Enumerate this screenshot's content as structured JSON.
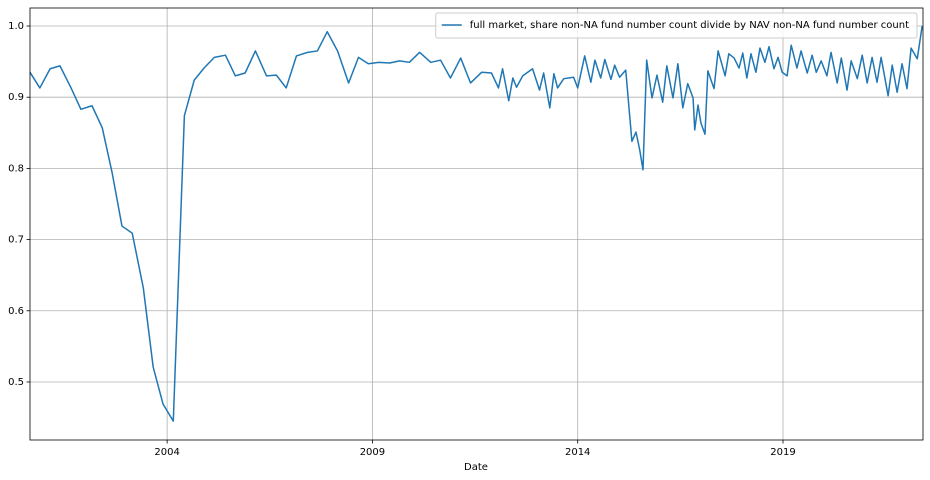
{
  "chart_data": {
    "type": "line",
    "xlabel": "Date",
    "xlim": [
      2000.66,
      2022.41
    ],
    "xticks": [
      2004,
      2009,
      2014,
      2019
    ],
    "ylim": [
      0.4185,
      1.0253
    ],
    "yticks": [
      0.5,
      0.6,
      0.7,
      0.8,
      0.9,
      {
        "value": 1.0,
        "label": "1.0"
      }
    ],
    "grid": true,
    "legend": "upper right",
    "series": [
      {
        "name": "full market, share non-NA fund number count divide by NAV non-NA fund number count",
        "color": "#1f77b4",
        "x": [
          2000.66,
          2000.9,
          2001.15,
          2001.39,
          2001.66,
          2001.9,
          2002.17,
          2002.42,
          2002.66,
          2002.9,
          2003.15,
          2003.42,
          2003.66,
          2003.9,
          2004.15,
          2004.42,
          2004.66,
          2004.9,
          2005.15,
          2005.42,
          2005.66,
          2005.9,
          2006.15,
          2006.42,
          2006.66,
          2006.9,
          2007.15,
          2007.42,
          2007.66,
          2007.9,
          2008.15,
          2008.42,
          2008.66,
          2008.9,
          2009.15,
          2009.42,
          2009.66,
          2009.9,
          2010.15,
          2010.42,
          2010.66,
          2010.9,
          2011.15,
          2011.39,
          2011.66,
          2011.9,
          2012.07,
          2012.17,
          2012.32,
          2012.42,
          2012.51,
          2012.66,
          2012.9,
          2013.07,
          2013.17,
          2013.32,
          2013.42,
          2013.51,
          2013.66,
          2013.9,
          2014.0,
          2014.17,
          2014.32,
          2014.42,
          2014.56,
          2014.66,
          2014.81,
          2014.9,
          2015.02,
          2015.17,
          2015.32,
          2015.42,
          2015.51,
          2015.59,
          2015.68,
          2015.81,
          2015.93,
          2016.07,
          2016.17,
          2016.32,
          2016.44,
          2016.56,
          2016.68,
          2016.81,
          2016.85,
          2016.93,
          2017.0,
          2017.1,
          2017.17,
          2017.32,
          2017.42,
          2017.59,
          2017.68,
          2017.81,
          2017.93,
          2018.02,
          2018.12,
          2018.22,
          2018.34,
          2018.44,
          2018.56,
          2018.66,
          2018.78,
          2018.88,
          2018.98,
          2019.1,
          2019.2,
          2019.34,
          2019.44,
          2019.59,
          2019.71,
          2019.81,
          2019.93,
          2020.07,
          2020.17,
          2020.32,
          2020.42,
          2020.56,
          2020.66,
          2020.81,
          2020.93,
          2021.05,
          2021.17,
          2021.29,
          2021.39,
          2021.56,
          2021.66,
          2021.78,
          2021.9,
          2022.02,
          2022.12,
          2022.27,
          2022.39
        ],
        "values": [
          0.935,
          0.913,
          0.94,
          0.944,
          0.913,
          0.883,
          0.888,
          0.857,
          0.794,
          0.719,
          0.709,
          0.632,
          0.521,
          0.469,
          0.445,
          0.874,
          0.924,
          0.941,
          0.956,
          0.959,
          0.93,
          0.934,
          0.965,
          0.93,
          0.931,
          0.913,
          0.958,
          0.963,
          0.965,
          0.992,
          0.965,
          0.92,
          0.956,
          0.947,
          0.949,
          0.948,
          0.951,
          0.949,
          0.963,
          0.949,
          0.952,
          0.927,
          0.955,
          0.92,
          0.935,
          0.934,
          0.913,
          0.94,
          0.895,
          0.927,
          0.914,
          0.93,
          0.94,
          0.91,
          0.934,
          0.885,
          0.933,
          0.913,
          0.926,
          0.928,
          0.913,
          0.958,
          0.921,
          0.952,
          0.927,
          0.953,
          0.925,
          0.945,
          0.928,
          0.938,
          0.838,
          0.851,
          0.826,
          0.798,
          0.952,
          0.899,
          0.931,
          0.893,
          0.944,
          0.899,
          0.947,
          0.885,
          0.919,
          0.899,
          0.854,
          0.889,
          0.864,
          0.848,
          0.937,
          0.912,
          0.965,
          0.93,
          0.961,
          0.955,
          0.941,
          0.962,
          0.927,
          0.961,
          0.935,
          0.969,
          0.949,
          0.971,
          0.94,
          0.956,
          0.935,
          0.93,
          0.973,
          0.941,
          0.965,
          0.934,
          0.959,
          0.935,
          0.951,
          0.93,
          0.963,
          0.92,
          0.955,
          0.91,
          0.951,
          0.926,
          0.959,
          0.92,
          0.956,
          0.921,
          0.956,
          0.902,
          0.945,
          0.907,
          0.947,
          0.912,
          0.969,
          0.954,
          1.0
        ]
      }
    ]
  }
}
